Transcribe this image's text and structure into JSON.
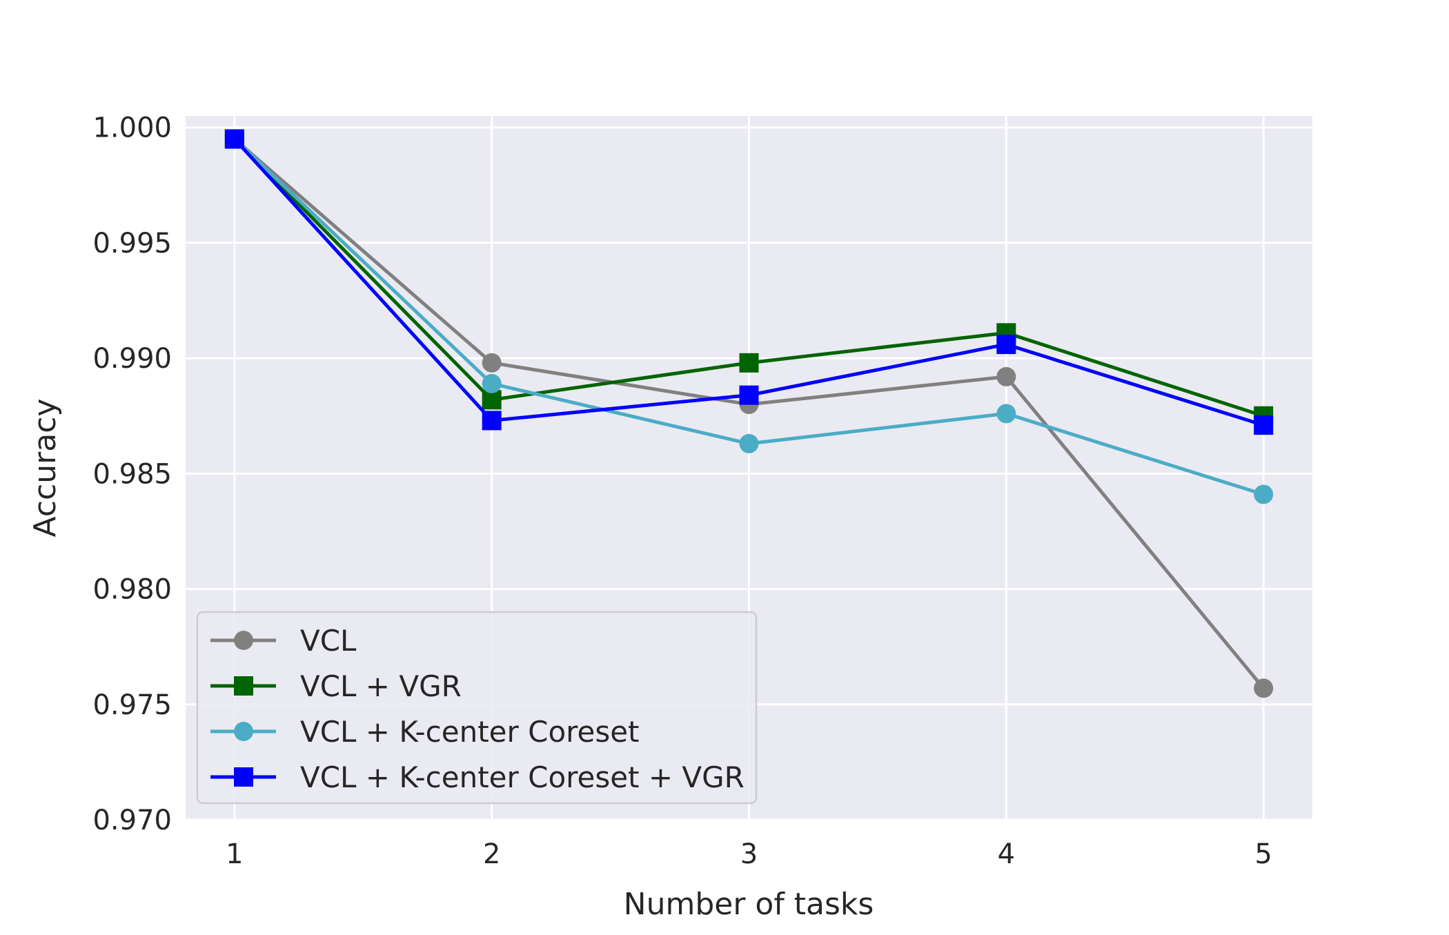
{
  "chart_data": {
    "type": "line",
    "xlabel": "Number of tasks",
    "ylabel": "Accuracy",
    "x": [
      1,
      2,
      3,
      4,
      5
    ],
    "xticks": [
      "1",
      "2",
      "3",
      "4",
      "5"
    ],
    "xlim": [
      0.81,
      5.19
    ],
    "ylim": [
      0.97,
      1.0005
    ],
    "yticks": [
      "0.970",
      "0.975",
      "0.980",
      "0.985",
      "0.990",
      "0.995",
      "1.000"
    ],
    "ytick_values": [
      0.97,
      0.975,
      0.98,
      0.985,
      0.99,
      0.995,
      1.0
    ],
    "grid": true,
    "legend_position": "lower-left",
    "series": [
      {
        "name": "VCL",
        "color": "#808080",
        "marker": "circle",
        "values": [
          0.9995,
          0.9898,
          0.988,
          0.9892,
          0.9757
        ]
      },
      {
        "name": "VCL + VGR",
        "color": "#006400",
        "marker": "square",
        "values": [
          0.9995,
          0.9882,
          0.9898,
          0.9911,
          0.9875
        ]
      },
      {
        "name": "VCL + K-center Coreset",
        "color": "#4bacc6",
        "marker": "circle",
        "values": [
          0.9995,
          0.9889,
          0.9863,
          0.9876,
          0.9841
        ]
      },
      {
        "name": "VCL + K-center Coreset + VGR",
        "color": "#0000ff",
        "marker": "square",
        "values": [
          0.9995,
          0.9873,
          0.9884,
          0.9906,
          0.9871
        ]
      }
    ]
  }
}
